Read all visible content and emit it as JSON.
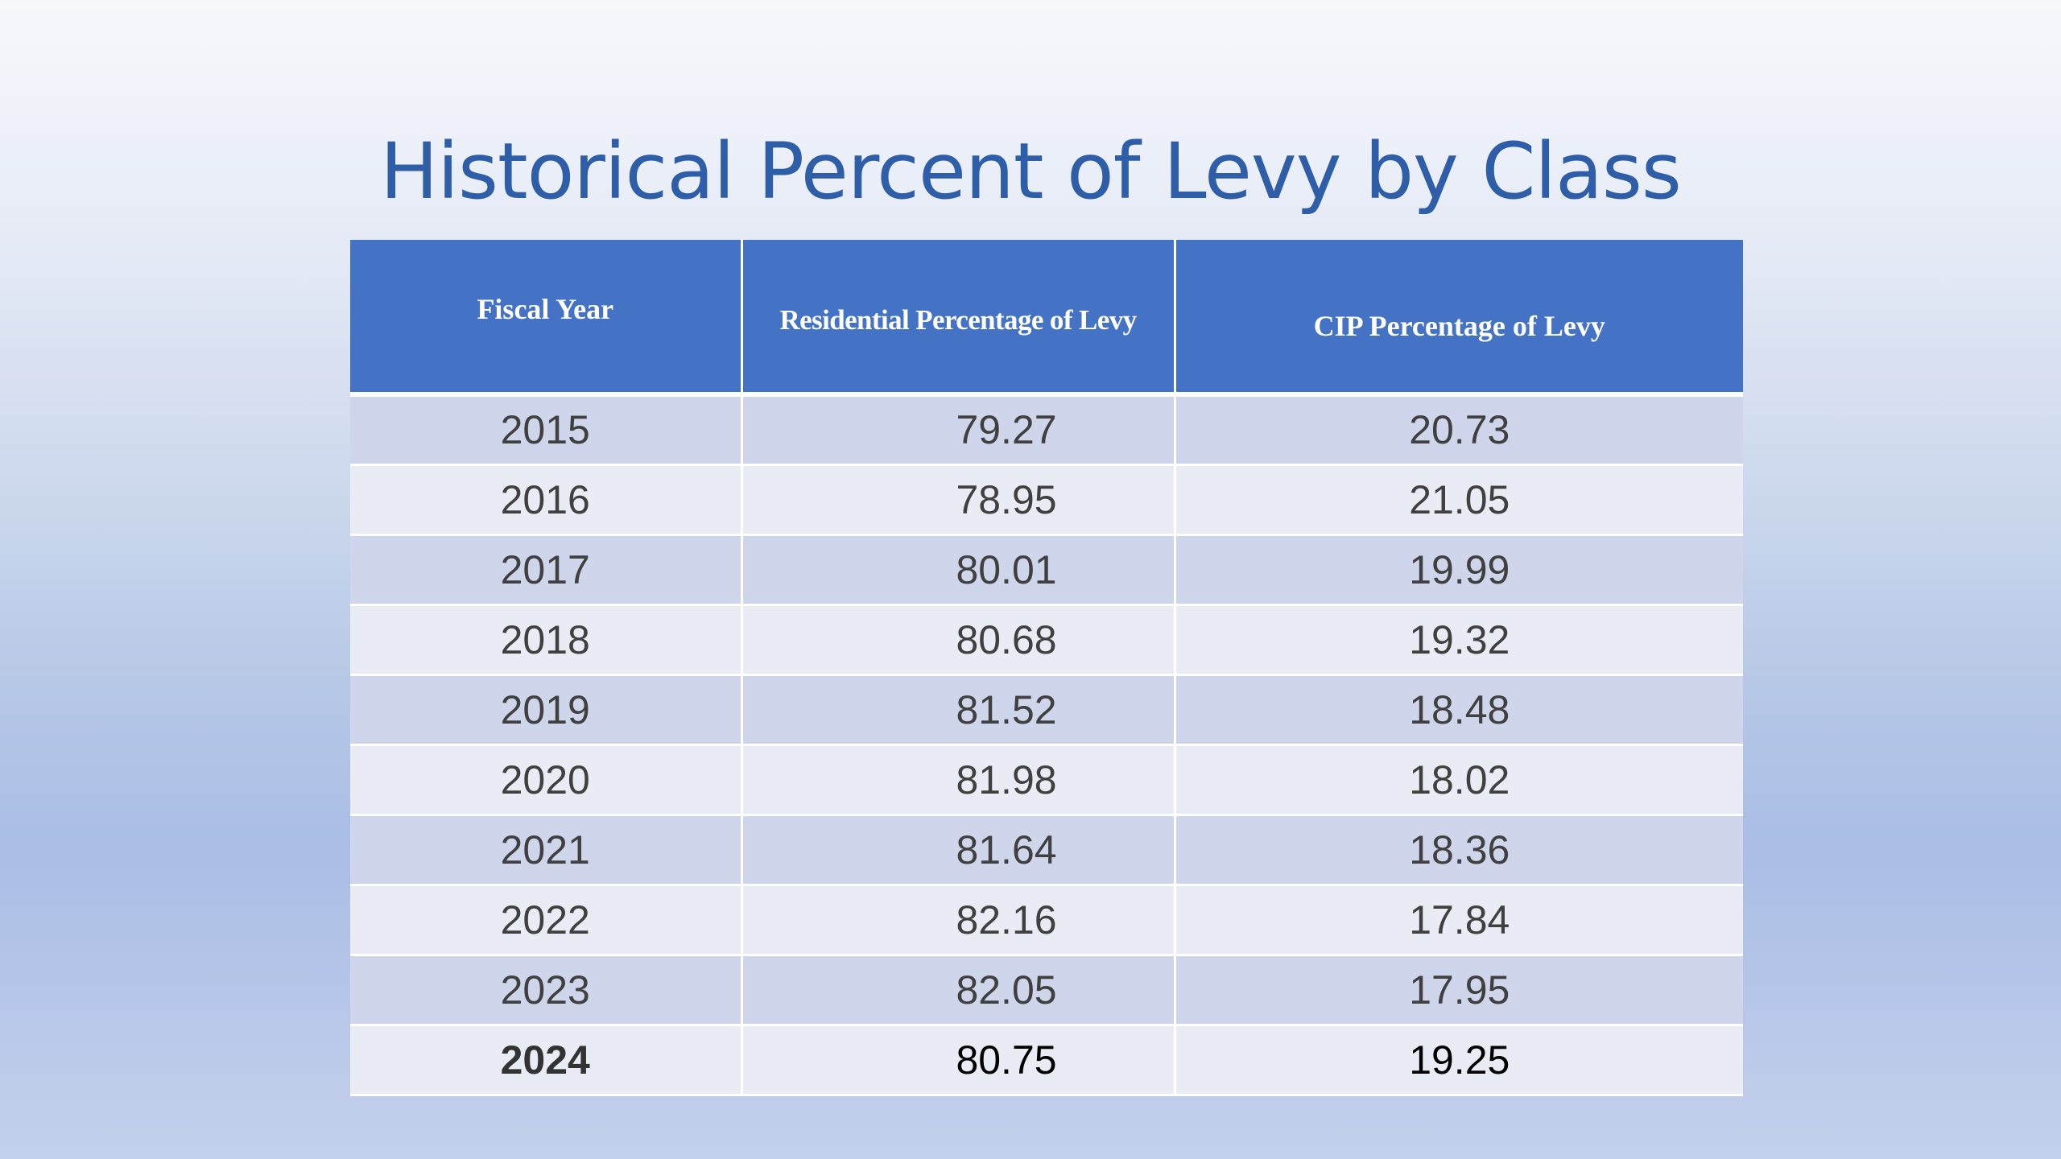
{
  "slide": {
    "title": "Historical Percent of Levy by Class"
  },
  "table": {
    "headers": {
      "fiscal_year": "Fiscal Year",
      "residential": "Residential Percentage of Levy",
      "cip": "CIP Percentage of Levy"
    },
    "rows": [
      {
        "year": "2015",
        "residential": "79.27",
        "cip": "20.73"
      },
      {
        "year": "2016",
        "residential": "78.95",
        "cip": "21.05"
      },
      {
        "year": "2017",
        "residential": "80.01",
        "cip": "19.99"
      },
      {
        "year": "2018",
        "residential": "80.68",
        "cip": "19.32"
      },
      {
        "year": "2019",
        "residential": "81.52",
        "cip": "18.48"
      },
      {
        "year": "2020",
        "residential": "81.98",
        "cip": "18.02"
      },
      {
        "year": "2021",
        "residential": "81.64",
        "cip": "18.36"
      },
      {
        "year": "2022",
        "residential": "82.16",
        "cip": "17.84"
      },
      {
        "year": "2023",
        "residential": "82.05",
        "cip": "17.95"
      },
      {
        "year": "2024",
        "residential": "80.75",
        "cip": "19.25"
      }
    ]
  },
  "colors": {
    "title": "#2e5ea8",
    "header_bg": "#4472c4",
    "row_band_dark": "#cfd5ea",
    "row_band_light": "#e9ebf5"
  }
}
